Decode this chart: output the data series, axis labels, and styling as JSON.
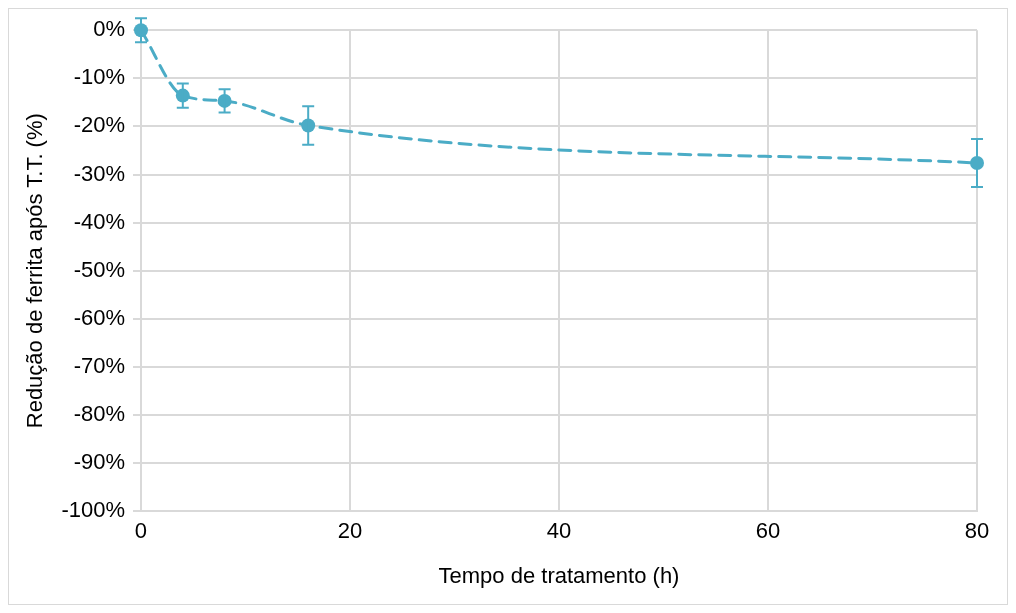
{
  "chart_data": {
    "type": "line",
    "xlabel": "Tempo de tratamento (h)",
    "ylabel": "Redução de ferrita após T.T. (%)",
    "x": [
      0,
      4,
      8,
      16,
      80
    ],
    "series": [
      {
        "color": "#4bacc6",
        "values": [
          0,
          -13.6,
          -14.7,
          -19.8,
          -27.6
        ],
        "errors": [
          2.5,
          2.5,
          2.4,
          4,
          5
        ]
      }
    ],
    "xlim": [
      0,
      80
    ],
    "xticks": [
      0,
      20,
      40,
      60,
      80
    ],
    "ylim": [
      -100,
      0
    ],
    "yticks": [
      {
        "value": 0,
        "label": "0%"
      },
      {
        "value": -10,
        "label": "-10%"
      },
      {
        "value": -20,
        "label": "-20%"
      },
      {
        "value": -30,
        "label": "-30%"
      },
      {
        "value": -40,
        "label": "-40%"
      },
      {
        "value": -50,
        "label": "-50%"
      },
      {
        "value": -60,
        "label": "-60%"
      },
      {
        "value": -70,
        "label": "-70%"
      },
      {
        "value": -80,
        "label": "-80%"
      },
      {
        "value": -90,
        "label": "-90%"
      },
      {
        "value": -100,
        "label": "-100%"
      }
    ],
    "grid": true,
    "legend": false,
    "marker": "circle",
    "line_style": "dashed"
  }
}
